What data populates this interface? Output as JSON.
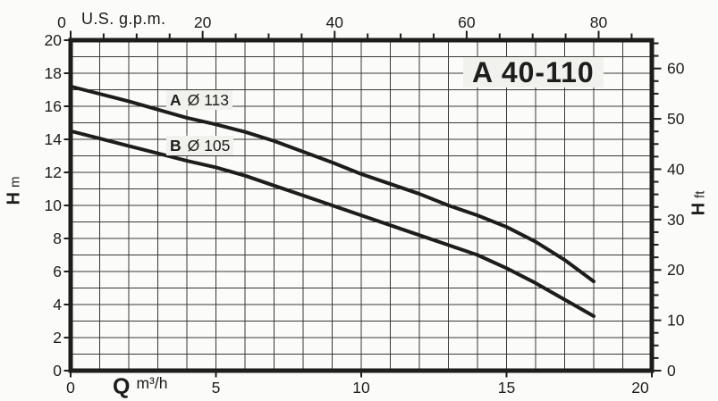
{
  "page": {
    "background": "#fbfbf9",
    "ink": "#1d1d1b",
    "grid_color": "#3a3834",
    "label_bg": "#f1f1ee"
  },
  "chart_data": {
    "type": "line",
    "title": "A 40-110",
    "grid": true,
    "legend_position": "inline-curve-labels",
    "x_bottom": {
      "label": "Q",
      "unit": "m³/h",
      "range": [
        0,
        20
      ],
      "major_ticks": [
        0,
        5,
        10,
        15,
        20
      ],
      "grid_step": 1
    },
    "x_top": {
      "label": "U.S. g.p.m.",
      "range": [
        0,
        88.06
      ],
      "major_ticks": [
        0,
        20,
        40,
        60,
        80
      ],
      "minor_step": 5
    },
    "y_left": {
      "label": "H",
      "unit": "m",
      "range": [
        0,
        20
      ],
      "major_ticks": [
        0,
        2,
        4,
        6,
        8,
        10,
        12,
        14,
        16,
        18,
        20
      ],
      "grid_step": 1
    },
    "y_right": {
      "label": "H",
      "unit": "ft",
      "range": [
        0,
        65.62
      ],
      "major_ticks": [
        0,
        10,
        20,
        30,
        40,
        50,
        60
      ],
      "minor_step": 2.5
    },
    "series": [
      {
        "name": "A",
        "diameter": "Ø 113",
        "x": [
          0,
          1,
          2,
          3,
          4,
          5,
          6,
          7,
          8,
          9,
          10,
          11,
          12,
          13,
          14,
          15,
          16,
          17,
          18
        ],
        "h_m": [
          17.2,
          16.75,
          16.3,
          15.8,
          15.3,
          14.9,
          14.45,
          13.9,
          13.25,
          12.6,
          11.9,
          11.3,
          10.7,
          10.0,
          9.4,
          8.7,
          7.8,
          6.7,
          5.4
        ]
      },
      {
        "name": "B",
        "diameter": "Ø 105",
        "x": [
          0,
          1,
          2,
          3,
          4,
          5,
          6,
          7,
          8,
          9,
          10,
          11,
          12,
          13,
          14,
          15,
          16,
          17,
          18
        ],
        "h_m": [
          14.5,
          14.05,
          13.6,
          13.15,
          12.7,
          12.3,
          11.8,
          11.2,
          10.6,
          10.0,
          9.4,
          8.8,
          8.2,
          7.6,
          7.0,
          6.2,
          5.3,
          4.3,
          3.3
        ]
      }
    ]
  }
}
